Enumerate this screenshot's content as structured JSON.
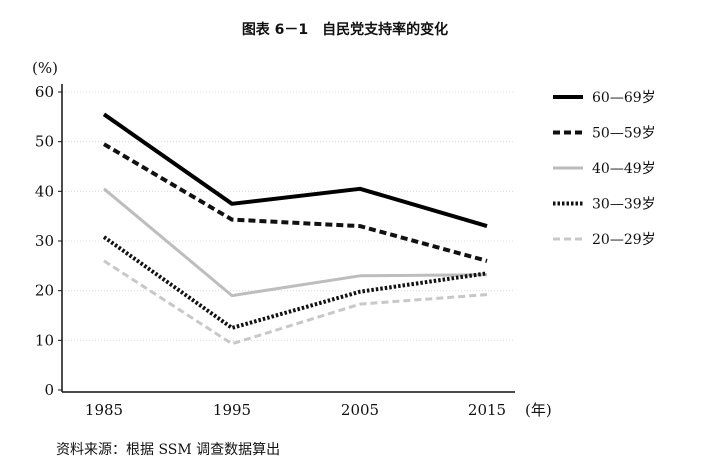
{
  "chart_data": {
    "type": "line",
    "title": "图表 6－1　自民党支持率的变化",
    "ylabel": "(%)",
    "xlabel": "(年)",
    "x": [
      "1985",
      "1995",
      "2005",
      "2015"
    ],
    "ylim": [
      0,
      60
    ],
    "yticks": [
      0,
      10,
      20,
      30,
      40,
      50,
      60
    ],
    "grid": true,
    "legend_position": "right",
    "series": [
      {
        "name": "60—69岁",
        "values": [
          55.5,
          37.5,
          40.5,
          33
        ],
        "color": "#000000",
        "style": "solid"
      },
      {
        "name": "50—59岁",
        "values": [
          49.5,
          34.3,
          33,
          26
        ],
        "color": "#111111",
        "style": "dashed"
      },
      {
        "name": "40—49岁",
        "values": [
          40.5,
          19,
          23,
          23.2
        ],
        "color": "#bdbdbd",
        "style": "solid"
      },
      {
        "name": "30—39岁",
        "values": [
          30.8,
          12.5,
          19.8,
          23.5
        ],
        "color": "#111111",
        "style": "dotted"
      },
      {
        "name": "20—29岁",
        "values": [
          26,
          9.3,
          17.3,
          19.2
        ],
        "color": "#c8c8c8",
        "style": "dashed"
      }
    ],
    "source": "资料来源：根据 SSM 调查数据算出"
  }
}
